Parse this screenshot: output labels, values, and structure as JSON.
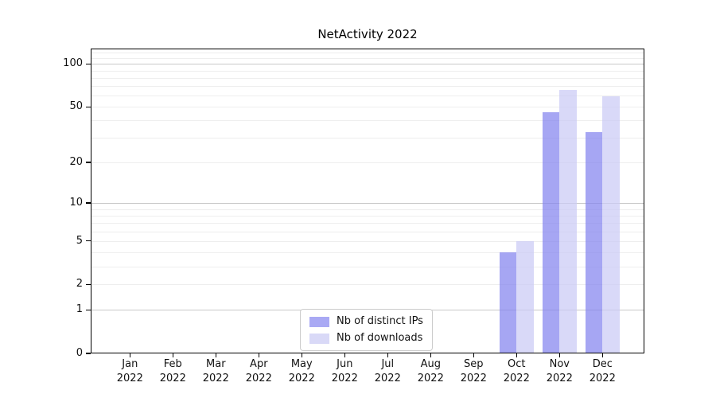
{
  "chart_data": {
    "type": "bar",
    "title": "NetActivity 2022",
    "x_categories": [
      "Jan",
      "Feb",
      "Mar",
      "Apr",
      "May",
      "Jun",
      "Jul",
      "Aug",
      "Sep",
      "Oct",
      "Nov",
      "Dec"
    ],
    "x_year_label": "2022",
    "series": [
      {
        "name": "Nb of distinct IPs",
        "values": [
          0,
          0,
          0,
          0,
          0,
          0,
          0,
          0,
          0,
          4,
          46,
          33
        ],
        "bar_color": "rgba(132,132,239,0.72)",
        "swatch_color": "#a9a9f4"
      },
      {
        "name": "Nb of downloads",
        "values": [
          0,
          0,
          0,
          0,
          0,
          0,
          0,
          0,
          0,
          5,
          66,
          59
        ],
        "bar_color": "rgba(203,203,245,0.72)",
        "swatch_color": "#d9d9f7"
      }
    ],
    "y_scale": "log10(value+1)",
    "y_ticks": [
      0,
      1,
      2,
      5,
      10,
      20,
      50,
      100
    ],
    "y_grid_major": [
      1,
      10,
      100
    ],
    "y_grid_minor": [
      2,
      3,
      4,
      5,
      6,
      7,
      8,
      9,
      20,
      30,
      40,
      50,
      60,
      70,
      80,
      90,
      110,
      120
    ],
    "ylim": [
      0,
      128
    ],
    "grid": "horizontal major+minor",
    "legend_position": "lower center",
    "grid_major_color": "#c9c9c9",
    "grid_minor_color": "#eeeeee",
    "spine_color": "#000000"
  }
}
